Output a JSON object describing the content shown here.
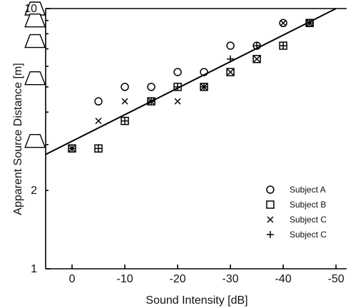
{
  "chart_data": {
    "type": "scatter",
    "title": "",
    "xlabel": "Sound Intensity [dB]",
    "ylabel": "Apparent Source Distance [m]",
    "xlim": [
      5,
      -52
    ],
    "ylim": [
      1,
      10
    ],
    "y_scale": "log",
    "x_ticks": [
      0,
      -10,
      -20,
      -30,
      -40,
      -50
    ],
    "x_tick_labels": [
      "0",
      "-10",
      "-20",
      "-30",
      "-40",
      "-50"
    ],
    "y_ticks": [
      1,
      2,
      10
    ],
    "y_tick_labels": [
      "1",
      "2",
      "10"
    ],
    "grid": false,
    "legend_position": "bottom-right",
    "series": [
      {
        "name": "Subject A",
        "marker": "circle",
        "x": [
          -5,
          -10,
          -15,
          -20,
          -25,
          -30,
          -35,
          -40,
          -45
        ],
        "y": [
          4.4,
          5.0,
          5.0,
          5.7,
          5.7,
          7.2,
          7.2,
          8.8,
          8.8
        ]
      },
      {
        "name": "Subject B",
        "marker": "square",
        "x": [
          0,
          -5,
          -10,
          -15,
          -20,
          -25,
          -30,
          -35,
          -40,
          -45
        ],
        "y": [
          2.9,
          2.9,
          3.7,
          4.4,
          5.0,
          5.0,
          5.7,
          6.4,
          7.2,
          8.8
        ]
      },
      {
        "name": "Subject C",
        "marker": "x",
        "x": [
          0,
          -5,
          -10,
          -15,
          -20,
          -25,
          -30,
          -35,
          -40,
          -45
        ],
        "y": [
          2.9,
          3.7,
          4.4,
          4.4,
          4.4,
          5.0,
          5.7,
          6.4,
          8.8,
          8.8
        ]
      },
      {
        "name": "Subject C",
        "marker": "plus",
        "x": [
          0,
          -5,
          -10,
          -15,
          -20,
          -25,
          -30,
          -35,
          -40,
          -45
        ],
        "y": [
          2.9,
          2.9,
          3.7,
          4.4,
          5.0,
          5.0,
          6.4,
          7.2,
          7.2,
          8.8
        ]
      }
    ],
    "fit_line": {
      "x": [
        5,
        -50
      ],
      "y": [
        2.75,
        10.0
      ]
    },
    "speakers": {
      "x": 7,
      "y": [
        10,
        9,
        7.5,
        5.4,
        3.1
      ]
    }
  }
}
